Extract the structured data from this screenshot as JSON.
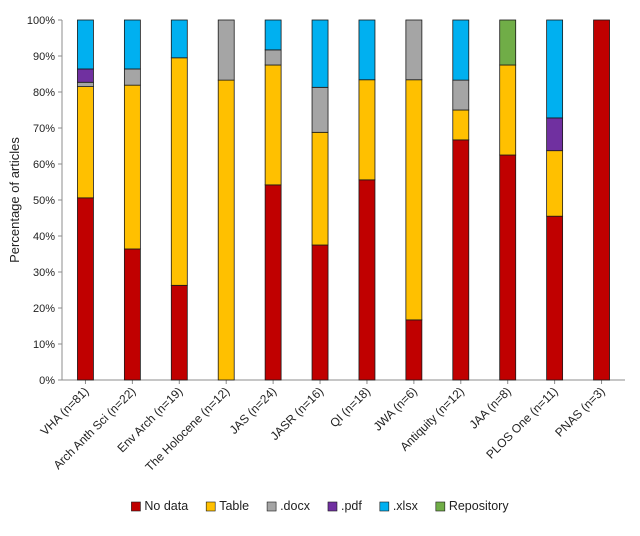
{
  "chart_data": {
    "type": "bar",
    "stacked": true,
    "percent": true,
    "title": "",
    "xlabel": "",
    "ylabel": "Percentage of articles",
    "ylim": [
      0,
      100
    ],
    "yticks": [
      0,
      10,
      20,
      30,
      40,
      50,
      60,
      70,
      80,
      90,
      100
    ],
    "ytick_suffix": "%",
    "legend_position": "bottom",
    "categories": [
      "VHA (n=81)",
      "Arch Anth Sci (n=22)",
      "Env Arch (n=19)",
      "The Holocene (n=12)",
      "JAS (n=24)",
      "JASR (n=16)",
      "QI (n=18)",
      "JWA (n=6)",
      "Antiquity (n=12)",
      "JAA (n=8)",
      "PLOS One (n=11)",
      "PNAS (n=3)"
    ],
    "series": [
      {
        "name": "No data",
        "color": "#C00000",
        "values": [
          50.6,
          36.4,
          26.3,
          0.0,
          54.2,
          37.5,
          55.6,
          16.7,
          66.7,
          62.5,
          45.5,
          100.0
        ]
      },
      {
        "name": "Table",
        "color": "#FFC000",
        "values": [
          30.9,
          45.5,
          63.2,
          83.3,
          33.3,
          31.3,
          27.8,
          66.7,
          8.3,
          25.0,
          18.2,
          0.0
        ]
      },
      {
        "name": ".docx",
        "color": "#A5A5A5",
        "values": [
          1.2,
          4.5,
          0.0,
          16.7,
          4.2,
          12.5,
          0.0,
          16.6,
          8.3,
          0.0,
          0.0,
          0.0
        ]
      },
      {
        "name": ".pdf",
        "color": "#7030A0",
        "values": [
          3.7,
          0.0,
          0.0,
          0.0,
          0.0,
          0.0,
          0.0,
          0.0,
          0.0,
          0.0,
          9.1,
          0.0
        ]
      },
      {
        "name": ".xlsx",
        "color": "#00B0F0",
        "values": [
          13.6,
          13.6,
          10.5,
          0.0,
          8.3,
          18.7,
          16.6,
          0.0,
          16.7,
          0.0,
          27.2,
          0.0
        ]
      },
      {
        "name": "Repository",
        "color": "#70AD47",
        "values": [
          0.0,
          0.0,
          0.0,
          0.0,
          0.0,
          0.0,
          0.0,
          0.0,
          0.0,
          12.5,
          0.0,
          0.0
        ]
      }
    ]
  }
}
